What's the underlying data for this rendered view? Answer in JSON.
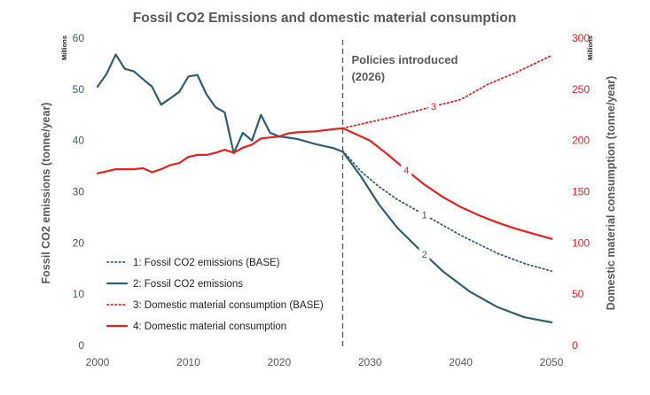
{
  "chart_data": {
    "type": "line",
    "title": "Fossil CO2 Emissions and domestic material consumption",
    "xlim": [
      2000,
      2050
    ],
    "x_ticks": [
      "2000",
      "2010",
      "2020",
      "2030",
      "2040",
      "2050"
    ],
    "y_left": {
      "label": "Fossil CO2 emissions (tonne/year)",
      "unit": "Millions",
      "lim": [
        0,
        60
      ],
      "ticks": [
        "0",
        "10",
        "20",
        "30",
        "40",
        "50",
        "60"
      ],
      "color": "#2e5f7a"
    },
    "y_right": {
      "label": "Domestic material consumption (tonne/year)",
      "unit": "Millions",
      "lim": [
        0,
        300
      ],
      "ticks": [
        "0",
        "50",
        "100",
        "150",
        "200",
        "250",
        "300"
      ],
      "color": "#e8231f"
    },
    "annotation": {
      "x": 2027,
      "text_line1": "Policies introduced",
      "text_line2": "(2026)"
    },
    "legend_position": "bottom-left",
    "series": [
      {
        "name": "1: Fossil CO2 emissions (BASE)",
        "marker": "1",
        "axis": "left",
        "style": "dotted",
        "color": "#2e5f7a",
        "marker_x": 2036,
        "points": [
          [
            2027,
            38
          ],
          [
            2029,
            34
          ],
          [
            2031,
            31
          ],
          [
            2033,
            28.5
          ],
          [
            2036,
            25.5
          ],
          [
            2040,
            21.5
          ],
          [
            2044,
            18
          ],
          [
            2047,
            16
          ],
          [
            2050,
            14.5
          ]
        ]
      },
      {
        "name": "2: Fossil CO2 emissions",
        "marker": "2",
        "axis": "left",
        "style": "solid",
        "color": "#2e5f7a",
        "marker_x": 2036,
        "points": [
          [
            2000,
            50.5
          ],
          [
            2001,
            53
          ],
          [
            2002,
            56.8
          ],
          [
            2003,
            54
          ],
          [
            2004,
            53.5
          ],
          [
            2005,
            52
          ],
          [
            2006,
            50.5
          ],
          [
            2007,
            47
          ],
          [
            2008,
            48.2
          ],
          [
            2009,
            49.5
          ],
          [
            2010,
            52.5
          ],
          [
            2011,
            52.8
          ],
          [
            2012,
            49
          ],
          [
            2013,
            46.5
          ],
          [
            2014,
            45.5
          ],
          [
            2015,
            37.5
          ],
          [
            2016,
            41.5
          ],
          [
            2017,
            40
          ],
          [
            2018,
            45
          ],
          [
            2019,
            41.5
          ],
          [
            2020,
            40.8
          ],
          [
            2022,
            40.3
          ],
          [
            2024,
            39.3
          ],
          [
            2026,
            38.5
          ],
          [
            2027,
            37.8
          ],
          [
            2029,
            33
          ],
          [
            2031,
            27.5
          ],
          [
            2033,
            23
          ],
          [
            2035,
            19.5
          ],
          [
            2038,
            14.5
          ],
          [
            2041,
            10.5
          ],
          [
            2044,
            7.5
          ],
          [
            2047,
            5.5
          ],
          [
            2050,
            4.5
          ]
        ]
      },
      {
        "name": "3: Domestic material consumption (BASE)",
        "marker": "3",
        "axis": "right",
        "style": "dotted",
        "color": "#e8231f",
        "marker_x": 2037,
        "points": [
          [
            2027,
            212
          ],
          [
            2030,
            218
          ],
          [
            2033,
            224
          ],
          [
            2036,
            231
          ],
          [
            2040,
            240
          ],
          [
            2043,
            255
          ],
          [
            2046,
            266
          ],
          [
            2050,
            283
          ]
        ]
      },
      {
        "name": "4: Domestic material consumption",
        "marker": "4",
        "axis": "right",
        "style": "solid",
        "color": "#e8231f",
        "marker_x": 2034,
        "points": [
          [
            2000,
            168
          ],
          [
            2001,
            170
          ],
          [
            2002,
            172
          ],
          [
            2003,
            172
          ],
          [
            2004,
            172
          ],
          [
            2005,
            173
          ],
          [
            2006,
            169
          ],
          [
            2007,
            172
          ],
          [
            2008,
            176
          ],
          [
            2009,
            178
          ],
          [
            2010,
            184
          ],
          [
            2011,
            186
          ],
          [
            2012,
            186
          ],
          [
            2013,
            188
          ],
          [
            2014,
            191
          ],
          [
            2015,
            188
          ],
          [
            2016,
            193
          ],
          [
            2017,
            196
          ],
          [
            2018,
            202
          ],
          [
            2019,
            203
          ],
          [
            2020,
            204
          ],
          [
            2021,
            207
          ],
          [
            2022,
            208
          ],
          [
            2024,
            209
          ],
          [
            2026,
            211
          ],
          [
            2027,
            212
          ],
          [
            2028,
            208
          ],
          [
            2030,
            200
          ],
          [
            2032,
            186
          ],
          [
            2034,
            171
          ],
          [
            2036,
            157
          ],
          [
            2038,
            145
          ],
          [
            2040,
            135
          ],
          [
            2042,
            127
          ],
          [
            2044,
            120
          ],
          [
            2046,
            114
          ],
          [
            2048,
            109
          ],
          [
            2050,
            104
          ]
        ]
      }
    ]
  }
}
